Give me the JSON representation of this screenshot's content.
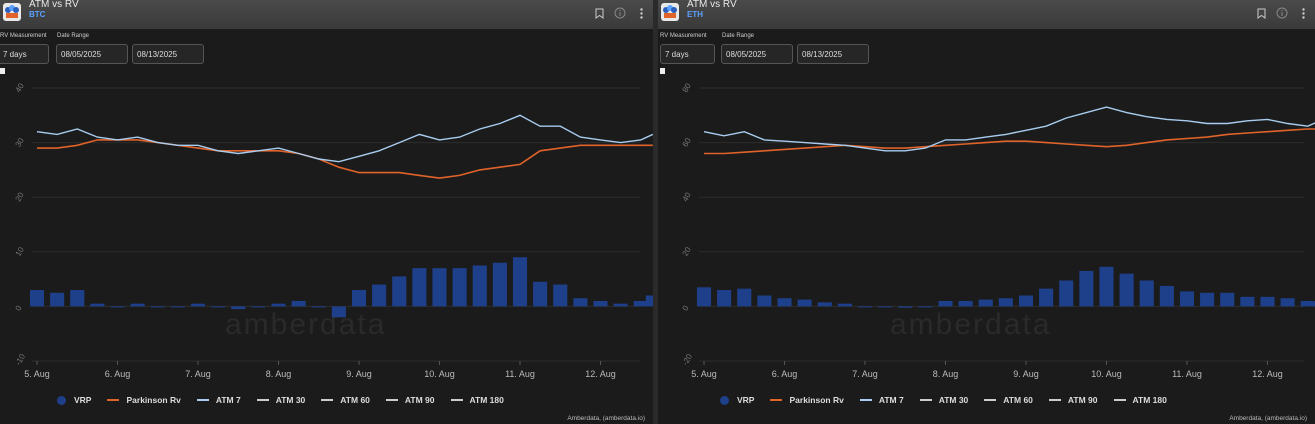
{
  "panels": [
    {
      "title": "ATM vs RV",
      "asset": "BTC",
      "rv_label": "RV Measurement",
      "rv_value": "7 days",
      "range_label": "Date Range",
      "start_date": "08/05/2025",
      "end_date": "08/13/2025",
      "credit": "Amberdata, (amberdata.io)",
      "watermark": "amberdata"
    },
    {
      "title": "ATM vs RV",
      "asset": "ETH",
      "rv_label": "RV Measurement",
      "rv_value": "7 days",
      "range_label": "Date Range",
      "start_date": "08/05/2025",
      "end_date": "08/13/2025",
      "credit": "Amberdata, (amberdata.io)",
      "watermark": "amberdata"
    }
  ],
  "legend": [
    "VRP",
    "Parkinson Rv",
    "ATM 7",
    "ATM 30",
    "ATM 60",
    "ATM 90",
    "ATM 180"
  ],
  "colors": {
    "vrp": "#1e3f8a",
    "parkinson": "#e0632a",
    "atm7": "#a8cdf0",
    "atm_other": "#cccccc"
  },
  "chart_data": [
    {
      "type": "line",
      "title": "ATM vs RV",
      "subtitle": "BTC",
      "categories": [
        "5. Aug",
        "6. Aug",
        "7. Aug",
        "8. Aug",
        "9. Aug",
        "10. Aug",
        "11. Aug",
        "12. Aug"
      ],
      "x": [
        5,
        5.25,
        5.5,
        5.75,
        6,
        6.25,
        6.5,
        6.75,
        7,
        7.25,
        7.5,
        7.75,
        8,
        8.25,
        8.5,
        8.75,
        9,
        9.25,
        9.5,
        9.75,
        10,
        10.25,
        10.5,
        10.75,
        11,
        11.25,
        11.5,
        11.75,
        12,
        12.25,
        12.5,
        12.65
      ],
      "ylim": [
        -10,
        40
      ],
      "series": [
        {
          "name": "ATM 7",
          "values": [
            32,
            31.5,
            32.5,
            31,
            30.5,
            31,
            30,
            29.5,
            29.5,
            28.5,
            28,
            28.5,
            29,
            28,
            27,
            26.5,
            27.5,
            28.5,
            30,
            31.5,
            30.5,
            31,
            32.5,
            33.5,
            35,
            33,
            33,
            31,
            30.5,
            30,
            30.5,
            31.5
          ]
        },
        {
          "name": "Parkinson Rv",
          "values": [
            29,
            29,
            29.5,
            30.5,
            30.5,
            30.5,
            30,
            29.5,
            29,
            28.5,
            28.5,
            28.5,
            28.5,
            28,
            27,
            25.5,
            24.5,
            24.5,
            24.5,
            24,
            23.5,
            24,
            25,
            25.5,
            26,
            28.5,
            29,
            29.5,
            29.5,
            29.5,
            29.5,
            29.5
          ]
        },
        {
          "name": "VRP",
          "values": [
            3,
            2.5,
            3,
            0.5,
            0,
            0.5,
            0,
            0,
            0.5,
            0,
            -0.5,
            0,
            0.5,
            1,
            0,
            -2,
            3,
            4,
            5.5,
            7,
            7,
            7,
            7.5,
            8,
            9,
            4.5,
            4,
            1.5,
            1,
            0.5,
            1,
            2
          ]
        }
      ]
    },
    {
      "type": "line",
      "title": "ATM vs RV",
      "subtitle": "ETH",
      "categories": [
        "5. Aug",
        "6. Aug",
        "7. Aug",
        "8. Aug",
        "9. Aug",
        "10. Aug",
        "11. Aug",
        "12. Aug"
      ],
      "x": [
        5,
        5.25,
        5.5,
        5.75,
        6,
        6.25,
        6.5,
        6.75,
        7,
        7.25,
        7.5,
        7.75,
        8,
        8.25,
        8.5,
        8.75,
        9,
        9.25,
        9.5,
        9.75,
        10,
        10.25,
        10.5,
        10.75,
        11,
        11.25,
        11.5,
        11.75,
        12,
        12.25,
        12.5,
        12.65
      ],
      "ylim": [
        -20,
        80
      ],
      "series": [
        {
          "name": "ATM 7",
          "values": [
            64,
            62.5,
            64,
            61,
            60.5,
            60,
            59.5,
            59,
            58,
            57,
            57,
            58,
            61,
            61,
            62,
            63,
            64.5,
            66,
            69,
            71,
            73,
            71,
            69.5,
            68.5,
            68,
            67,
            67,
            68,
            68.5,
            67,
            66,
            68
          ]
        },
        {
          "name": "Parkinson Rv",
          "values": [
            56,
            56,
            56.5,
            57,
            57.5,
            58,
            58.5,
            59,
            58.5,
            58,
            58,
            58.5,
            59,
            59.5,
            60,
            60.5,
            60.5,
            60,
            59.5,
            59,
            58.5,
            59,
            60,
            61,
            61.5,
            62,
            63,
            63.5,
            64,
            64.5,
            65,
            65
          ]
        },
        {
          "name": "VRP",
          "values": [
            7,
            6,
            6.5,
            4,
            3,
            2.5,
            1.5,
            1,
            0,
            0,
            -0.5,
            0,
            2,
            2,
            2.5,
            3,
            4,
            6.5,
            9.5,
            13,
            14.5,
            12,
            9.5,
            7.5,
            5.5,
            5,
            5,
            3.5,
            3.5,
            3,
            2,
            1.5
          ]
        }
      ]
    }
  ]
}
